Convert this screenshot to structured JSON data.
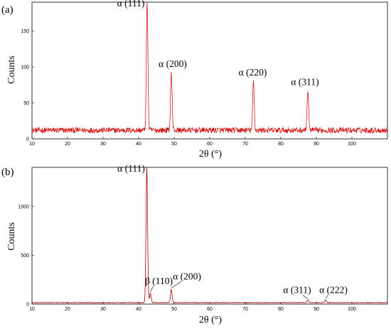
{
  "chart_data": [
    {
      "type": "line",
      "panel_label": "(a)",
      "xlabel": "2θ (°)",
      "ylabel": "Counts",
      "xlim": [
        10,
        110
      ],
      "ylim": [
        0,
        190
      ],
      "xticks": [
        10,
        20,
        30,
        40,
        50,
        60,
        70,
        80,
        90,
        100
      ],
      "yticks": [
        0,
        50,
        100,
        150
      ],
      "baseline": 12,
      "noise": 4,
      "line_color": "#d40000",
      "grid": false,
      "peaks": [
        {
          "label": "α (111)",
          "x": 42.4,
          "y": 190
        },
        {
          "label": "α (200)",
          "x": 49.2,
          "y": 92
        },
        {
          "label": "α (220)",
          "x": 72.3,
          "y": 80
        },
        {
          "label": "α (311)",
          "x": 87.6,
          "y": 67
        }
      ]
    },
    {
      "type": "line",
      "panel_label": "(b)",
      "xlabel": "2θ (°)",
      "ylabel": "Counts",
      "xlim": [
        10,
        110
      ],
      "ylim": [
        0,
        1400
      ],
      "xticks": [
        10,
        20,
        30,
        40,
        50,
        60,
        70,
        80,
        90,
        100
      ],
      "yticks": [
        0,
        500,
        1000
      ],
      "baseline": 15,
      "noise": 3,
      "line_color": "#b00000",
      "grid": false,
      "peaks": [
        {
          "label": "α (111)",
          "x": 42.3,
          "y": 1400
        },
        {
          "label": "β (110)",
          "x": 43.3,
          "y": 110
        },
        {
          "label": "α (200)",
          "x": 49.2,
          "y": 150
        },
        {
          "label": "α (311)",
          "x": 87.6,
          "y": 40
        },
        {
          "label": "α (222)",
          "x": 92.6,
          "y": 40
        }
      ]
    }
  ]
}
